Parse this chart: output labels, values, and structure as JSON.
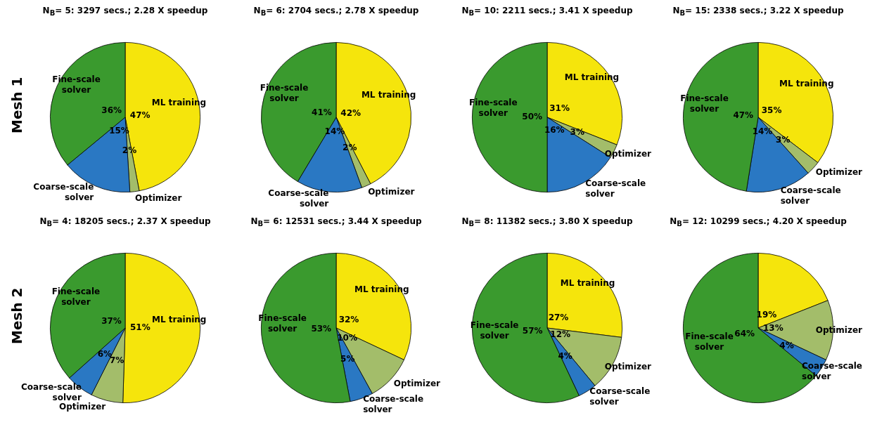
{
  "chart_data": [
    {
      "type": "pie",
      "title": "N$_{B}$= 5:  3297 secs.; 2.28 X speedup",
      "ylabel": "Mesh 1",
      "categories": [
        "ML training",
        "Optimizer",
        "Coarse-scale solver",
        "Fine-scale solver"
      ],
      "values": [
        47,
        2,
        15,
        36
      ],
      "value_labels": [
        "47%",
        "2%",
        "15%",
        "36%"
      ],
      "colors": [
        "#f5e50c",
        "#a3bd6a",
        "#2a78c3",
        "#3a9a2e"
      ]
    },
    {
      "type": "pie",
      "title": "N$_{B}$= 6:  2704 secs.; 2.78 X speedup",
      "categories": [
        "ML training",
        "Optimizer",
        "Coarse-scale solver",
        "Fine-scale solver"
      ],
      "values": [
        42,
        2,
        14,
        41
      ],
      "value_labels": [
        "42%",
        "2%",
        "14%",
        "41%"
      ],
      "colors": [
        "#f5e50c",
        "#a3bd6a",
        "#2a78c3",
        "#3a9a2e"
      ]
    },
    {
      "type": "pie",
      "title": "N$_{B}$= 10:  2211 secs.; 3.41 X speedup",
      "categories": [
        "ML training",
        "Optimizer",
        "Coarse-scale solver",
        "Fine-scale solver"
      ],
      "values": [
        31,
        3,
        16,
        50
      ],
      "value_labels": [
        "31%",
        "3%",
        "16%",
        "50%"
      ],
      "colors": [
        "#f5e50c",
        "#a3bd6a",
        "#2a78c3",
        "#3a9a2e"
      ]
    },
    {
      "type": "pie",
      "title": "N$_{B}$= 15:  2338 secs.; 3.22 X speedup",
      "categories": [
        "ML training",
        "Optimizer",
        "Coarse-scale solver",
        "Fine-scale solver"
      ],
      "values": [
        35,
        3,
        14,
        47
      ],
      "value_labels": [
        "35%",
        "3%",
        "14%",
        "47%"
      ],
      "colors": [
        "#f5e50c",
        "#a3bd6a",
        "#2a78c3",
        "#3a9a2e"
      ]
    },
    {
      "type": "pie",
      "title": "N$_{B}$= 4:  18205 secs.; 2.37 X speedup",
      "ylabel": "Mesh 2",
      "categories": [
        "ML training",
        "Optimizer",
        "Coarse-scale solver",
        "Fine-scale solver"
      ],
      "values": [
        51,
        7,
        6,
        37
      ],
      "value_labels": [
        "51%",
        "7%",
        "6%",
        "37%"
      ],
      "colors": [
        "#f5e50c",
        "#a3bd6a",
        "#2a78c3",
        "#3a9a2e"
      ]
    },
    {
      "type": "pie",
      "title": "N$_{B}$= 6:  12531 secs.; 3.44 X speedup",
      "categories": [
        "ML training",
        "Optimizer",
        "Coarse-scale solver",
        "Fine-scale solver"
      ],
      "values": [
        32,
        10,
        5,
        53
      ],
      "value_labels": [
        "32%",
        "10%",
        "5%",
        "53%"
      ],
      "colors": [
        "#f5e50c",
        "#a3bd6a",
        "#2a78c3",
        "#3a9a2e"
      ]
    },
    {
      "type": "pie",
      "title": "N$_{B}$= 8:  11382 secs.; 3.80 X speedup",
      "categories": [
        "ML training",
        "Optimizer",
        "Coarse-scale solver",
        "Fine-scale solver"
      ],
      "values": [
        27,
        12,
        4,
        57
      ],
      "value_labels": [
        "27%",
        "12%",
        "4%",
        "57%"
      ],
      "colors": [
        "#f5e50c",
        "#a3bd6a",
        "#2a78c3",
        "#3a9a2e"
      ]
    },
    {
      "type": "pie",
      "title": "N$_{B}$= 12:  10299 secs.; 4.20 X speedup",
      "categories": [
        null,
        "Optimizer",
        "Coarse-scale solver",
        "Fine-scale solver"
      ],
      "values": [
        19,
        13,
        4,
        64
      ],
      "value_labels": [
        "19%",
        "13%",
        "4%",
        "64%"
      ],
      "colors": [
        "#f5e50c",
        "#a3bd6a",
        "#2a78c3",
        "#3a9a2e"
      ]
    }
  ]
}
